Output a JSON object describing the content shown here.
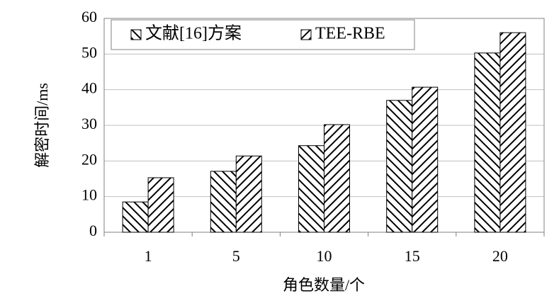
{
  "chart_data": {
    "type": "bar",
    "x_label": "角色数量/个",
    "y_label": "解密时间/ms",
    "categories": [
      "1",
      "5",
      "10",
      "15",
      "20"
    ],
    "series": [
      {
        "name": "文献[16]方案",
        "color": "#000000",
        "hatch": "backslash",
        "values": [
          8.5,
          17.1,
          24.3,
          37,
          50.3
        ]
      },
      {
        "name": "TEE-RBE",
        "color": "#000000",
        "hatch": "slash",
        "values": [
          15.3,
          21.4,
          30.2,
          40.7,
          56
        ]
      }
    ],
    "ylim": [
      0,
      60
    ],
    "yticks": [
      0,
      10,
      20,
      30,
      40,
      50,
      60
    ],
    "grid": true,
    "legend": "upper left"
  }
}
